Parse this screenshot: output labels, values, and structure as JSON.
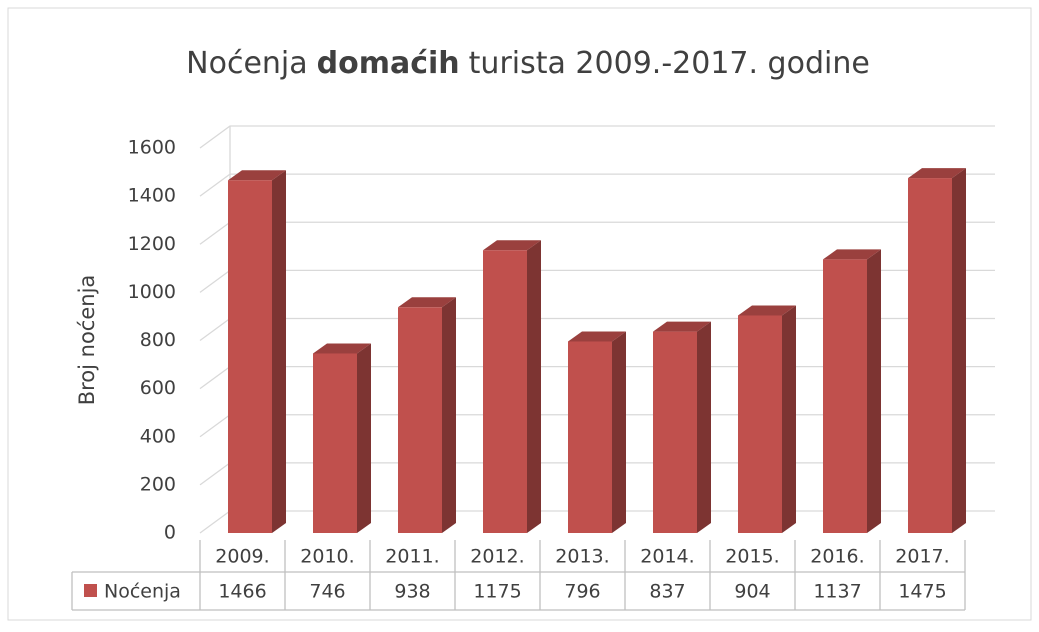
{
  "chart_data": {
    "type": "bar3d",
    "title_parts": [
      "Noćenja",
      "domaćih",
      "turista 2009.-2017. godine"
    ],
    "y_label": "Broj noćenja",
    "categories": [
      "2009.",
      "2010.",
      "2011.",
      "2012.",
      "2013.",
      "2014.",
      "2015.",
      "2016.",
      "2017."
    ],
    "series": [
      {
        "name": "Noćenja",
        "color": "#c0504d",
        "values": [
          1466,
          746,
          938,
          1175,
          796,
          837,
          904,
          1137,
          1475
        ]
      }
    ],
    "ylim": [
      0,
      1600
    ],
    "yticks": [
      0,
      200,
      400,
      600,
      800,
      1000,
      1200,
      1400,
      1600
    ],
    "grid": true,
    "data_table": true
  }
}
